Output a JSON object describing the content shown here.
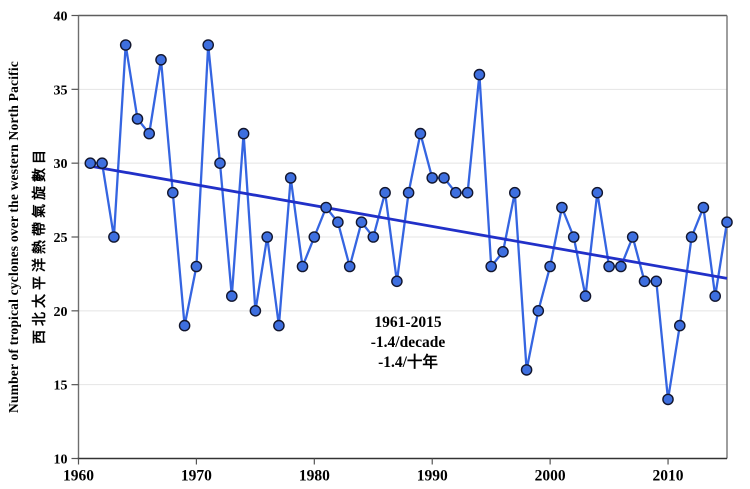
{
  "chart_data": {
    "type": "line",
    "title": "",
    "ylabel_en": "Number of tropical cyclones over the western North Pacific",
    "ylabel_zh": "西北太平洋熱帶氣旋數目",
    "xlabel": "",
    "xlim": [
      1960,
      2015
    ],
    "ylim": [
      10,
      40
    ],
    "xticks": [
      1960,
      1970,
      1980,
      1990,
      2000,
      2010
    ],
    "yticks": [
      10,
      15,
      20,
      25,
      30,
      35,
      40
    ],
    "grid": "horizontal",
    "legend": "none",
    "years": [
      1961,
      1962,
      1963,
      1964,
      1965,
      1966,
      1967,
      1968,
      1969,
      1970,
      1971,
      1972,
      1973,
      1974,
      1975,
      1976,
      1977,
      1978,
      1979,
      1980,
      1981,
      1982,
      1983,
      1984,
      1985,
      1986,
      1987,
      1988,
      1989,
      1990,
      1991,
      1992,
      1993,
      1994,
      1995,
      1996,
      1997,
      1998,
      1999,
      2000,
      2001,
      2002,
      2003,
      2004,
      2005,
      2006,
      2007,
      2008,
      2009,
      2010,
      2011,
      2012,
      2013,
      2014,
      2015
    ],
    "values": [
      30,
      30,
      25,
      38,
      33,
      32,
      37,
      28,
      19,
      23,
      38,
      30,
      21,
      32,
      20,
      25,
      19,
      29,
      23,
      25,
      27,
      26,
      23,
      26,
      25,
      28,
      22,
      28,
      32,
      29,
      29,
      28,
      28,
      36,
      23,
      24,
      28,
      16,
      20,
      23,
      27,
      25,
      21,
      28,
      23,
      23,
      25,
      22,
      22,
      14,
      19,
      25,
      27,
      21,
      26
    ],
    "trend": {
      "start_year": 1961,
      "start_value": 29.8,
      "end_year": 2015,
      "end_value": 22.2,
      "rate_per_decade": -1.4
    },
    "annotation": {
      "line1": "1961-2015",
      "line2": "-1.4/decade",
      "line3": "-1.4/十年"
    },
    "colors": {
      "series_line": "#3565E1",
      "marker_fill": "#3E6FDF",
      "marker_stroke": "#12162E",
      "trend_line": "#2130C8",
      "gridline": "#E4E4E4",
      "axis_left": "#6E6E6E",
      "axis_top": "#5E5E5E",
      "axis_right": "#757575",
      "axis_bottom": "#333333",
      "tick_color": "#555555",
      "text": "#000000"
    }
  }
}
